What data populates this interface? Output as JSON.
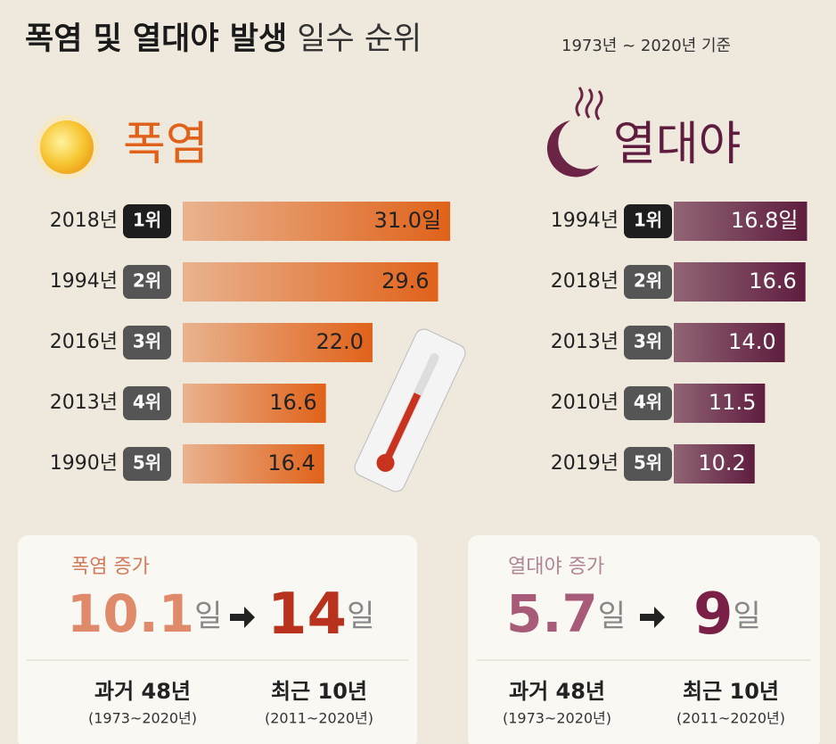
{
  "header": {
    "title": "폭염 및 열대야 발생",
    "title_light": "일수 순위",
    "period": "1973년 ~ 2020년 기준"
  },
  "chart_data": [
    {
      "type": "bar",
      "orientation": "horizontal",
      "title": "폭염",
      "categories": [
        "2018년",
        "1994년",
        "2016년",
        "2013년",
        "1990년"
      ],
      "ranks": [
        "1위",
        "2위",
        "3위",
        "4위",
        "5위"
      ],
      "values": [
        31.0,
        29.6,
        22.0,
        16.6,
        16.4
      ],
      "value_labels": [
        "31.0일",
        "29.6",
        "22.0",
        "16.6",
        "16.4"
      ],
      "color": "#e0621a",
      "label_color": "#222222"
    },
    {
      "type": "bar",
      "orientation": "horizontal",
      "title": "열대야",
      "categories": [
        "1994년",
        "2018년",
        "2013년",
        "2010년",
        "2019년"
      ],
      "ranks": [
        "1위",
        "2위",
        "3위",
        "4위",
        "5위"
      ],
      "values": [
        16.8,
        16.6,
        14.0,
        11.5,
        10.2
      ],
      "value_labels": [
        "16.8일",
        "16.6",
        "14.0",
        "11.5",
        "10.2"
      ],
      "color": "#5e1d3e",
      "label_color": "#ffffff"
    }
  ],
  "summary": [
    {
      "title": "폭염 증가",
      "from_value": "10.1",
      "from_unit": "일",
      "to_value": "14",
      "to_unit": "일",
      "past_label": "과거 48년",
      "past_period": "(1973~2020년)",
      "recent_label": "최근 10년",
      "recent_period": "(2011~2020년)"
    },
    {
      "title": "열대야 증가",
      "from_value": "5.7",
      "from_unit": "일",
      "to_value": "9",
      "to_unit": "일",
      "past_label": "과거 48년",
      "past_period": "(1973~2020년)",
      "recent_label": "최근 10년",
      "recent_period": "(2011~2020년)"
    }
  ]
}
